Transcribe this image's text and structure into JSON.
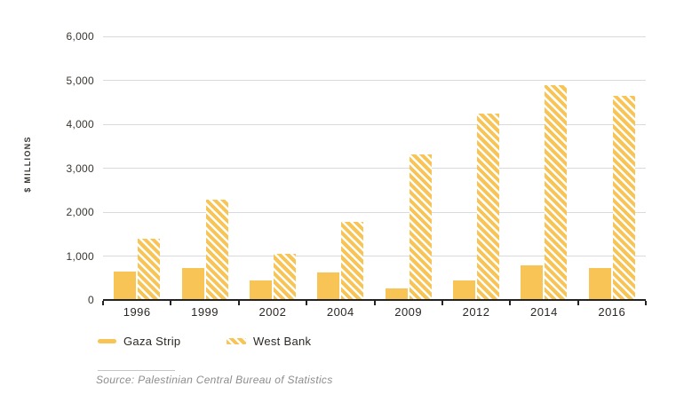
{
  "chart_data": {
    "type": "bar",
    "title": "",
    "xlabel": "",
    "ylabel": "$ MILLIONS",
    "categories": [
      "1996",
      "1999",
      "2002",
      "2004",
      "2009",
      "2012",
      "2014",
      "2016"
    ],
    "series": [
      {
        "name": "Gaza Strip",
        "style": "solid",
        "values": [
          650,
          720,
          440,
          630,
          270,
          440,
          790,
          720
        ]
      },
      {
        "name": "West Bank",
        "style": "striped",
        "values": [
          1390,
          2290,
          1060,
          1770,
          3310,
          4240,
          4880,
          4640
        ]
      }
    ],
    "ylim": [
      0,
      6000
    ],
    "ytick_interval": 1000,
    "ytick_labels": [
      "0",
      "1,000",
      "2,000",
      "3,000",
      "4,000",
      "5,000",
      "6,000"
    ],
    "grid": true,
    "legend_position": "bottom"
  },
  "colors": {
    "bar_yellow": "#F8C455",
    "gridline": "#D9D9DE",
    "axis": "#232323"
  },
  "legend": {
    "items": [
      {
        "label": "Gaza Strip",
        "swatch": "solid"
      },
      {
        "label": "West Bank",
        "swatch": "striped"
      }
    ]
  },
  "source": {
    "text": "Source: Palestinian Central Bureau of Statistics"
  }
}
